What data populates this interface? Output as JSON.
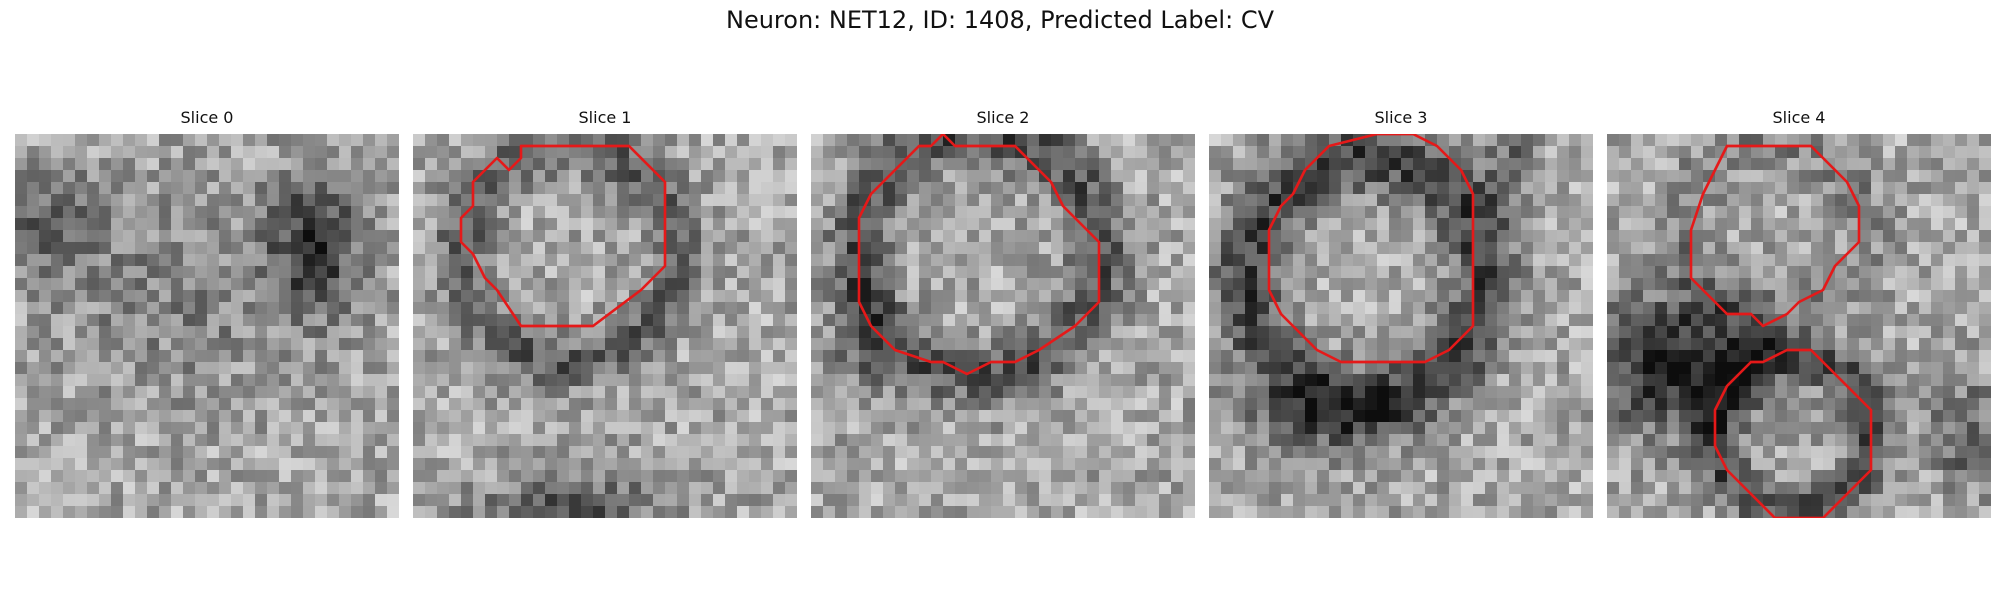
{
  "figure": {
    "title": "Neuron: NET12, ID: 1408, Predicted Label: CV"
  },
  "contour_color": "#e51919",
  "panels": [
    {
      "title": "Slice 0",
      "contours": []
    },
    {
      "title": "Slice 1",
      "contours": [
        [
          [
            10,
            1
          ],
          [
            18,
            1
          ],
          [
            21,
            4
          ],
          [
            21,
            11
          ],
          [
            19,
            13
          ],
          [
            15,
            16
          ],
          [
            9,
            16
          ],
          [
            7,
            13
          ],
          [
            6,
            12
          ],
          [
            5,
            10
          ],
          [
            4,
            9
          ],
          [
            4,
            7
          ],
          [
            5,
            6
          ],
          [
            5,
            4
          ],
          [
            6,
            3
          ],
          [
            7,
            2
          ],
          [
            8,
            3
          ],
          [
            9,
            2
          ],
          [
            9,
            1
          ]
        ]
      ]
    },
    {
      "title": "Slice 2",
      "contours": [
        [
          [
            13,
            1
          ],
          [
            17,
            1
          ],
          [
            19,
            3
          ],
          [
            20,
            4
          ],
          [
            21,
            6
          ],
          [
            23,
            8
          ],
          [
            24,
            9
          ],
          [
            24,
            14
          ],
          [
            22,
            16
          ],
          [
            19,
            18
          ],
          [
            17,
            19
          ],
          [
            15,
            19
          ],
          [
            13,
            20
          ],
          [
            11,
            19
          ],
          [
            10,
            19
          ],
          [
            7,
            18
          ],
          [
            5,
            16
          ],
          [
            4,
            14
          ],
          [
            4,
            7
          ],
          [
            5,
            5
          ],
          [
            6,
            4
          ],
          [
            7,
            3
          ],
          [
            8,
            2
          ],
          [
            9,
            1
          ],
          [
            10,
            1
          ],
          [
            11,
            0
          ],
          [
            12,
            1
          ]
        ]
      ]
    },
    {
      "title": "Slice 3",
      "contours": [
        [
          [
            10,
            1
          ],
          [
            14,
            0
          ],
          [
            17,
            0
          ],
          [
            19,
            1
          ],
          [
            21,
            3
          ],
          [
            22,
            5
          ],
          [
            22,
            16
          ],
          [
            20,
            18
          ],
          [
            18,
            19
          ],
          [
            11,
            19
          ],
          [
            9,
            18
          ],
          [
            7,
            16
          ],
          [
            6,
            15
          ],
          [
            5,
            13
          ],
          [
            5,
            8
          ],
          [
            6,
            6
          ],
          [
            7,
            5
          ],
          [
            8,
            3
          ],
          [
            9,
            2
          ]
        ]
      ]
    },
    {
      "title": "Slice 4",
      "contours": [
        [
          [
            10,
            1
          ],
          [
            17,
            1
          ],
          [
            19,
            3
          ],
          [
            20,
            4
          ],
          [
            21,
            6
          ],
          [
            21,
            9
          ],
          [
            20,
            10
          ],
          [
            19,
            11
          ],
          [
            18,
            13
          ],
          [
            16,
            14
          ],
          [
            15,
            15
          ],
          [
            13,
            16
          ],
          [
            12,
            15
          ],
          [
            10,
            15
          ],
          [
            9,
            14
          ],
          [
            8,
            13
          ],
          [
            7,
            12
          ],
          [
            7,
            8
          ],
          [
            8,
            5
          ],
          [
            9,
            3
          ]
        ],
        [
          [
            15,
            18
          ],
          [
            17,
            18
          ],
          [
            19,
            20
          ],
          [
            21,
            22
          ],
          [
            22,
            23
          ],
          [
            22,
            28
          ],
          [
            21,
            29
          ],
          [
            20,
            30
          ],
          [
            18,
            32
          ],
          [
            14,
            32
          ],
          [
            12,
            30
          ],
          [
            11,
            29
          ],
          [
            10,
            28
          ],
          [
            9,
            26
          ],
          [
            9,
            23
          ],
          [
            10,
            21
          ],
          [
            11,
            20
          ],
          [
            12,
            19
          ],
          [
            13,
            19
          ]
        ]
      ]
    }
  ]
}
